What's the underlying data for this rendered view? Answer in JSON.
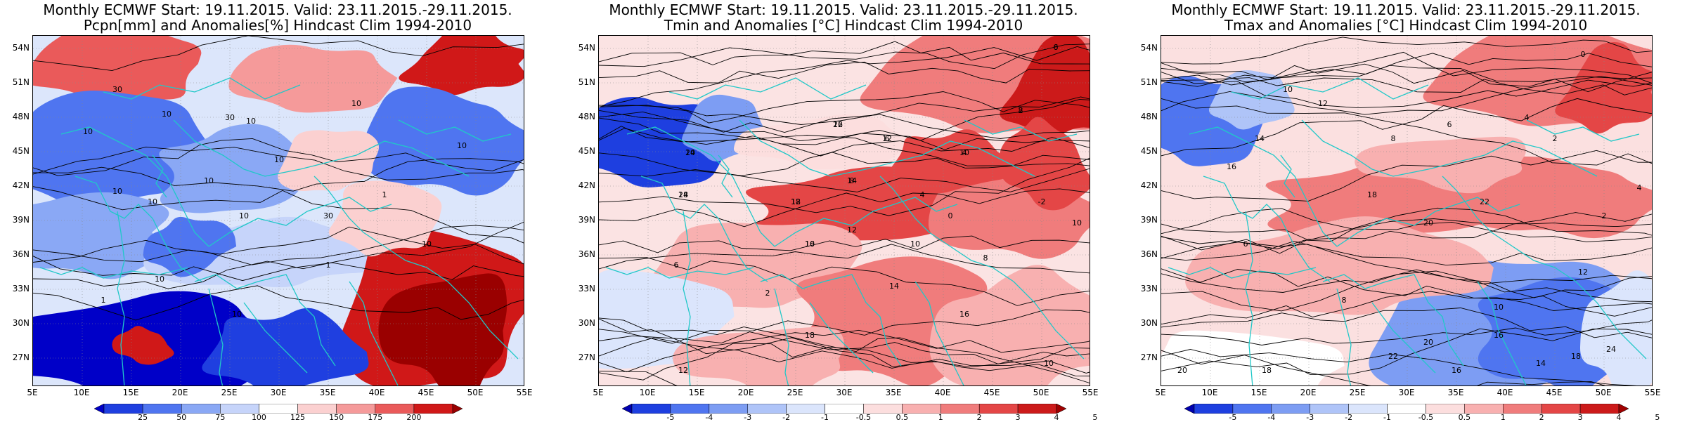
{
  "panels": [
    {
      "title_line1": "Monthly ECMWF Start: 19.11.2015. Valid: 23.11.2015.-29.11.2015.",
      "title_line2": "Pcpn[mm] and Anomalies[%] Hindcast Clim 1994-2010",
      "colorbar_labels": [
        "25",
        "50",
        "75",
        "100",
        "125",
        "150",
        "175",
        "200"
      ],
      "contour_labels": [
        "10",
        "10",
        "10",
        "10",
        "10",
        "10",
        "30",
        "30",
        "30",
        "10",
        "10",
        "10",
        "10",
        "10",
        "10",
        "10",
        "1",
        "1",
        "1"
      ]
    },
    {
      "title_line1": "Monthly ECMWF Start: 19.11.2015. Valid: 23.11.2015.-29.11.2015.",
      "title_line2": "Tmin and Anomalies [°C] Hindcast Clim 1994-2010",
      "colorbar_labels": [
        "-5",
        "-4",
        "-3",
        "-2",
        "-1",
        "-0.5",
        "0.5",
        "1",
        "2",
        "3",
        "4",
        "5"
      ],
      "contour_labels": [
        "0",
        "2",
        "4",
        "6",
        "8",
        "10",
        "12",
        "14",
        "16",
        "18",
        "4",
        "0",
        "-2",
        "10",
        "12",
        "10",
        "8",
        "6",
        "2",
        "14",
        "16",
        "18",
        "12",
        "10",
        "6",
        "8",
        "10",
        "12",
        "14",
        "16",
        "18",
        "20",
        "22",
        "24"
      ]
    },
    {
      "title_line1": "Monthly ECMWF Start: 19.11.2015. Valid: 23.11.2015.-29.11.2015.",
      "title_line2": "Tmax and Anomalies [°C] Hindcast Clim 1994-2010",
      "colorbar_labels": [
        "-5",
        "-4",
        "-3",
        "-2",
        "-1",
        "-0.5",
        "0.5",
        "1",
        "2",
        "3",
        "4",
        "5"
      ],
      "contour_labels": [
        "0",
        "2",
        "4",
        "6",
        "8",
        "10",
        "12",
        "14",
        "16",
        "18",
        "20",
        "22",
        "2",
        "4",
        "6",
        "8",
        "10",
        "12",
        "14",
        "16",
        "18",
        "20",
        "22",
        "24",
        "16",
        "18",
        "20"
      ]
    }
  ],
  "lat_labels": [
    "54N",
    "51N",
    "48N",
    "45N",
    "42N",
    "39N",
    "36N",
    "33N",
    "30N",
    "27N"
  ],
  "lon_labels": [
    "5E",
    "10E",
    "15E",
    "20E",
    "25E",
    "30E",
    "35E",
    "40E",
    "45E",
    "50E",
    "55E"
  ],
  "colors": {
    "pcpn": [
      "#0000c8",
      "#1f3fe0",
      "#4f75f0",
      "#8aa8f5",
      "#c6d4fa",
      "#ffffff",
      "#fbd0d0",
      "#f59a9a",
      "#ea5a5a",
      "#d01818",
      "#9a0000"
    ],
    "temp": [
      "#0000b0",
      "#1e3fe0",
      "#4f75f0",
      "#7d9df3",
      "#afc4f8",
      "#dbe5fc",
      "#ffffff",
      "#fcdede",
      "#f8b0b0",
      "#f07c7c",
      "#e44646",
      "#cc1a1a",
      "#a00000"
    ],
    "coast": "#20c8c8",
    "contour": "#000000"
  }
}
